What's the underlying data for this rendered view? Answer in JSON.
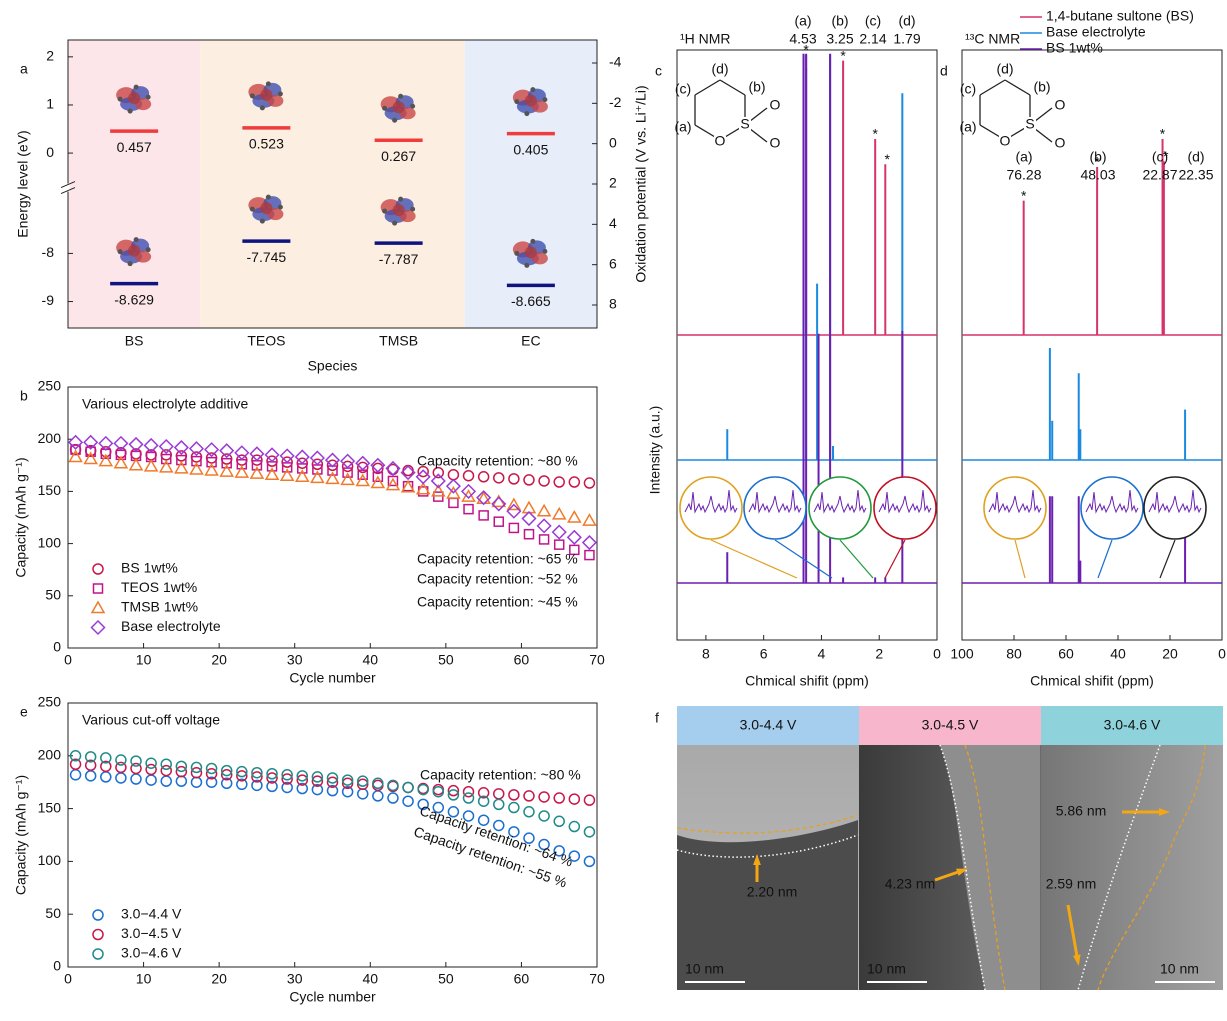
{
  "chart_data": [
    {
      "type": "energy-level",
      "panel": "a",
      "categories": [
        "BS",
        "TEOS",
        "TMSB",
        "EC"
      ],
      "category_colors": [
        "#fce6ea",
        "#fdeee2",
        "#fdeee2",
        "#e8edfa"
      ],
      "series": [
        {
          "color": "#f03c3c",
          "values": [
            0.457,
            0.523,
            0.267,
            0.405
          ]
        },
        {
          "color": "#0d1480",
          "values": [
            -8.629,
            -7.745,
            -7.787,
            -8.665
          ]
        }
      ],
      "xlabel": "Species",
      "ylabel": "Energy level (eV)",
      "y2label": "Oxidation potential (V vs. Li⁺/Li)",
      "ylim": [
        -9.55,
        2.35
      ],
      "ybreak": [
        -7.4,
        -0.55
      ],
      "yticks": [
        -9,
        -8,
        0,
        1,
        2
      ],
      "y2lim": [
        9.14,
        -5.14
      ],
      "y2ticks": [
        -4,
        -2,
        0,
        2,
        4,
        6,
        8
      ]
    },
    {
      "type": "scatter",
      "panel": "b",
      "title": "Various electrolyte additive",
      "x": [
        1,
        3,
        5,
        7,
        9,
        11,
        13,
        15,
        17,
        19,
        21,
        23,
        25,
        27,
        29,
        31,
        33,
        35,
        37,
        39,
        41,
        43,
        45,
        47,
        49,
        51,
        53,
        55,
        57,
        59,
        61,
        63,
        65,
        67,
        69
      ],
      "series": [
        {
          "name": "BS 1wt%",
          "color": "#c8184a",
          "marker": "circle",
          "values": [
            190,
            189,
            188,
            187,
            186,
            185,
            185,
            184,
            183,
            182,
            181,
            180,
            180,
            179,
            178,
            177,
            176,
            175,
            174,
            173,
            172,
            171,
            170,
            169,
            168,
            166,
            165,
            164,
            163,
            162,
            161,
            160,
            159,
            159,
            158
          ]
        },
        {
          "name": "TEOS 1wt%",
          "color": "#c0148c",
          "marker": "square",
          "values": [
            190,
            188,
            186,
            185,
            184,
            183,
            181,
            180,
            179,
            178,
            177,
            176,
            175,
            174,
            173,
            172,
            171,
            170,
            168,
            166,
            164,
            160,
            155,
            150,
            145,
            139,
            133,
            127,
            121,
            115,
            109,
            104,
            99,
            94,
            89
          ]
        },
        {
          "name": "TMSB 1wt%",
          "color": "#f07a2a",
          "marker": "triangle",
          "values": [
            183,
            181,
            179,
            177,
            175,
            174,
            173,
            172,
            171,
            170,
            169,
            168,
            167,
            166,
            165,
            164,
            163,
            162,
            161,
            160,
            158,
            156,
            154,
            152,
            150,
            148,
            145,
            143,
            140,
            137,
            134,
            131,
            128,
            125,
            122
          ]
        },
        {
          "name": "Base electrolyte",
          "color": "#9a3ad6",
          "marker": "diamond",
          "values": [
            197,
            197,
            196,
            196,
            195,
            194,
            193,
            192,
            191,
            190,
            189,
            187,
            186,
            185,
            184,
            183,
            182,
            180,
            179,
            177,
            175,
            172,
            168,
            164,
            160,
            155,
            150,
            144,
            138,
            131,
            124,
            117,
            111,
            106,
            101
          ]
        }
      ],
      "annotations": [
        {
          "text": "Capacity retention: ~80 %",
          "color": "#c8184a"
        },
        {
          "text": "Capacity retention: ~65 %",
          "color": "#f07a2a"
        },
        {
          "text": "Capacity retention: ~52 %",
          "color": "#9a3ad6"
        },
        {
          "text": "Capacity retention: ~45 %",
          "color": "#c0148c"
        }
      ],
      "xlabel": "Cycle number",
      "ylabel": "Capacity (mAh g⁻¹)",
      "xlim": [
        0,
        70
      ],
      "ylim": [
        0,
        250
      ],
      "xticks": [
        0,
        10,
        20,
        30,
        40,
        50,
        60,
        70
      ],
      "yticks": [
        0,
        50,
        100,
        150,
        200,
        250
      ],
      "legend": "lower left"
    },
    {
      "type": "scatter",
      "panel": "e",
      "title": "Various cut-off voltage",
      "x": [
        1,
        3,
        5,
        7,
        9,
        11,
        13,
        15,
        17,
        19,
        21,
        23,
        25,
        27,
        29,
        31,
        33,
        35,
        37,
        39,
        41,
        43,
        45,
        47,
        49,
        51,
        53,
        55,
        57,
        59,
        61,
        63,
        65,
        67,
        69
      ],
      "series": [
        {
          "name": "3.0−4.4 V",
          "color": "#1a6fd0",
          "marker": "circle",
          "values": [
            182,
            181,
            180,
            179,
            178,
            177,
            176,
            176,
            175,
            175,
            174,
            173,
            172,
            171,
            170,
            169,
            168,
            167,
            166,
            164,
            162,
            160,
            157,
            154,
            151,
            147,
            143,
            139,
            134,
            128,
            122,
            116,
            110,
            105,
            100
          ]
        },
        {
          "name": "3.0−4.5 V",
          "color": "#c8184a",
          "marker": "circle",
          "values": [
            192,
            191,
            190,
            189,
            188,
            187,
            186,
            185,
            184,
            183,
            182,
            181,
            180,
            179,
            178,
            177,
            176,
            175,
            174,
            173,
            172,
            171,
            170,
            169,
            168,
            167,
            166,
            165,
            164,
            163,
            162,
            161,
            160,
            159,
            158
          ]
        },
        {
          "name": "3.0−4.6 V",
          "color": "#1f8a8a",
          "marker": "circle",
          "values": [
            200,
            199,
            198,
            196,
            195,
            193,
            192,
            190,
            189,
            188,
            186,
            185,
            184,
            183,
            182,
            181,
            180,
            179,
            177,
            176,
            174,
            172,
            170,
            168,
            166,
            163,
            160,
            157,
            154,
            151,
            147,
            143,
            138,
            133,
            128
          ]
        }
      ],
      "annotations": [
        {
          "text": "Capacity retention: ~80 %",
          "color": "#c8184a"
        },
        {
          "text": "Capacity retention: ~64 %",
          "color": "#1f8a8a"
        },
        {
          "text": "Capacity retention: ~55 %",
          "color": "#1a6fd0"
        }
      ],
      "xlabel": "Cycle number",
      "ylabel": "Capacity (mAh g⁻¹)",
      "xlim": [
        0,
        70
      ],
      "ylim": [
        0,
        250
      ],
      "xticks": [
        0,
        10,
        20,
        30,
        40,
        50,
        60,
        70
      ],
      "yticks": [
        0,
        50,
        100,
        150,
        200,
        250
      ],
      "legend": "lower left"
    },
    {
      "type": "spectrum",
      "panel": "c",
      "title": "¹H NMR",
      "xlabel": "Chmical shifit (ppm)",
      "ylabel": "Intensity (a.u.)",
      "xlim": [
        9,
        0
      ],
      "xticks": [
        8,
        6,
        4,
        2,
        0
      ],
      "star": "*",
      "peak_labels": [
        {
          "tag": "(a)",
          "value": 4.53,
          "color": "#e0a020"
        },
        {
          "tag": "(b)",
          "value": 3.25,
          "color": "#1a6fd0"
        },
        {
          "tag": "(c)",
          "value": 2.14,
          "color": "#1f9a3a"
        },
        {
          "tag": "(d)",
          "value": 1.79,
          "color": "#c01020"
        }
      ],
      "structure": [
        "O",
        "S",
        "O",
        "O"
      ],
      "series": [
        {
          "color": "#d6336c",
          "x": [
            4.62,
            4.53,
            3.25,
            2.14,
            1.79
          ],
          "values": [
            100,
            100,
            98,
            70,
            61
          ]
        },
        {
          "color": "#1a8ae0",
          "x": [
            7.26,
            4.62,
            4.53,
            4.15,
            3.7,
            3.6,
            1.2
          ],
          "values": [
            11,
            145,
            140,
            63,
            145,
            5,
            131
          ]
        },
        {
          "color": "#6a1fb0",
          "x": [
            7.26,
            4.62,
            4.53,
            4.1,
            3.7,
            3.25,
            2.14,
            1.79,
            1.2
          ],
          "values": [
            11,
            189,
            189,
            89,
            189,
            2,
            2,
            2,
            90
          ]
        }
      ]
    },
    {
      "type": "spectrum",
      "panel": "d",
      "title": "¹³C NMR",
      "xlabel": "Chmical shifit (ppm)",
      "xlim": [
        100,
        0
      ],
      "xticks": [
        100,
        80,
        60,
        40,
        20,
        0
      ],
      "star": "*",
      "peak_labels": [
        {
          "tag": "(a)",
          "value": 76.28,
          "color": "#e0a020"
        },
        {
          "tag": "(b)",
          "value": 48.03,
          "color": "#1a6fd0"
        },
        {
          "tag": "(c)",
          "value": 22.87,
          "color": "#1f9a3a"
        },
        {
          "tag": "(d)",
          "value": 22.35,
          "color": "#c01020"
        }
      ],
      "structure": [
        "O",
        "S",
        "O",
        "O"
      ],
      "series": [
        {
          "name": "1,4-butane sultone (BS)",
          "color": "#d6336c",
          "x": [
            76.28,
            48.03,
            22.87,
            22.35
          ],
          "values": [
            48,
            60,
            70,
            62
          ]
        },
        {
          "name": "Base electrolyte",
          "color": "#1a8ae0",
          "x": [
            66.2,
            65.3,
            55.1,
            54.5,
            14.2
          ],
          "values": [
            40,
            14,
            31,
            11,
            18
          ]
        },
        {
          "name": "BS 1wt%",
          "color": "#6a1fb0",
          "x": [
            66.2,
            65.3,
            55.1,
            54.5,
            14.2
          ],
          "values": [
            31,
            31,
            31,
            8,
            17
          ]
        }
      ]
    }
  ],
  "panel_f": {
    "panel": "f",
    "images": [
      {
        "header": "3.0-4.4 V",
        "color": "#a4cdee",
        "thickness": "2.20 nm",
        "scale": "10 nm"
      },
      {
        "header": "3.0-4.5 V",
        "color": "#f7b6cb",
        "thickness": "4.23 nm",
        "scale": "10 nm"
      },
      {
        "header": "3.0-4.6 V",
        "color": "#8ed3dc",
        "thickness": "5.86 nm",
        "second_thickness": "2.59 nm",
        "scale": "10 nm"
      }
    ]
  }
}
